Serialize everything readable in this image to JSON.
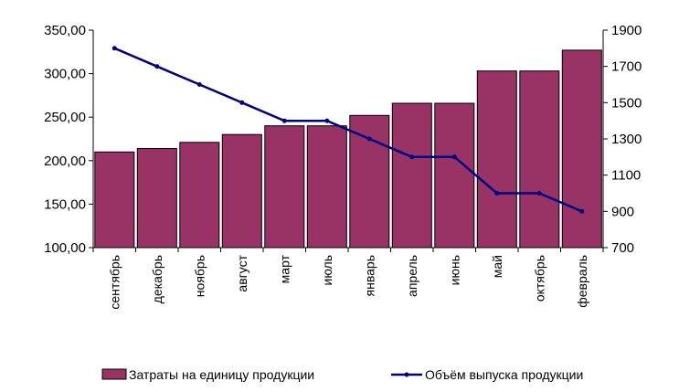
{
  "chart_data": {
    "type": "bar",
    "categories": [
      "сентябрь",
      "декабрь",
      "ноябрь",
      "август",
      "март",
      "июль",
      "январь",
      "апрель",
      "июнь",
      "май",
      "октябрь",
      "февраль"
    ],
    "series": [
      {
        "name": "Затраты на единицу продукции",
        "type": "bar",
        "axis": "left",
        "values": [
          210,
          214,
          221,
          230,
          240,
          240,
          252,
          266,
          266,
          303,
          303,
          327
        ],
        "color": "#993366"
      },
      {
        "name": "Объём выпуска продукции",
        "type": "line",
        "axis": "right",
        "values": [
          1800,
          1700,
          1600,
          1500,
          1400,
          1400,
          1300,
          1200,
          1200,
          1000,
          1000,
          900
        ],
        "color": "#000080"
      }
    ],
    "y_left": {
      "ylim": [
        100,
        350
      ],
      "ticks": [
        100,
        150,
        200,
        250,
        300,
        350
      ],
      "tick_labels": [
        "100,00",
        "150,00",
        "200,00",
        "250,00",
        "300,00",
        "350,00"
      ]
    },
    "y_right": {
      "ylim": [
        700,
        1900
      ],
      "ticks": [
        700,
        900,
        1100,
        1300,
        1500,
        1700,
        1900
      ],
      "tick_labels": [
        "700",
        "900",
        "1100",
        "1300",
        "1500",
        "1700",
        "1900"
      ]
    },
    "grid": false,
    "legend": "bottom"
  }
}
